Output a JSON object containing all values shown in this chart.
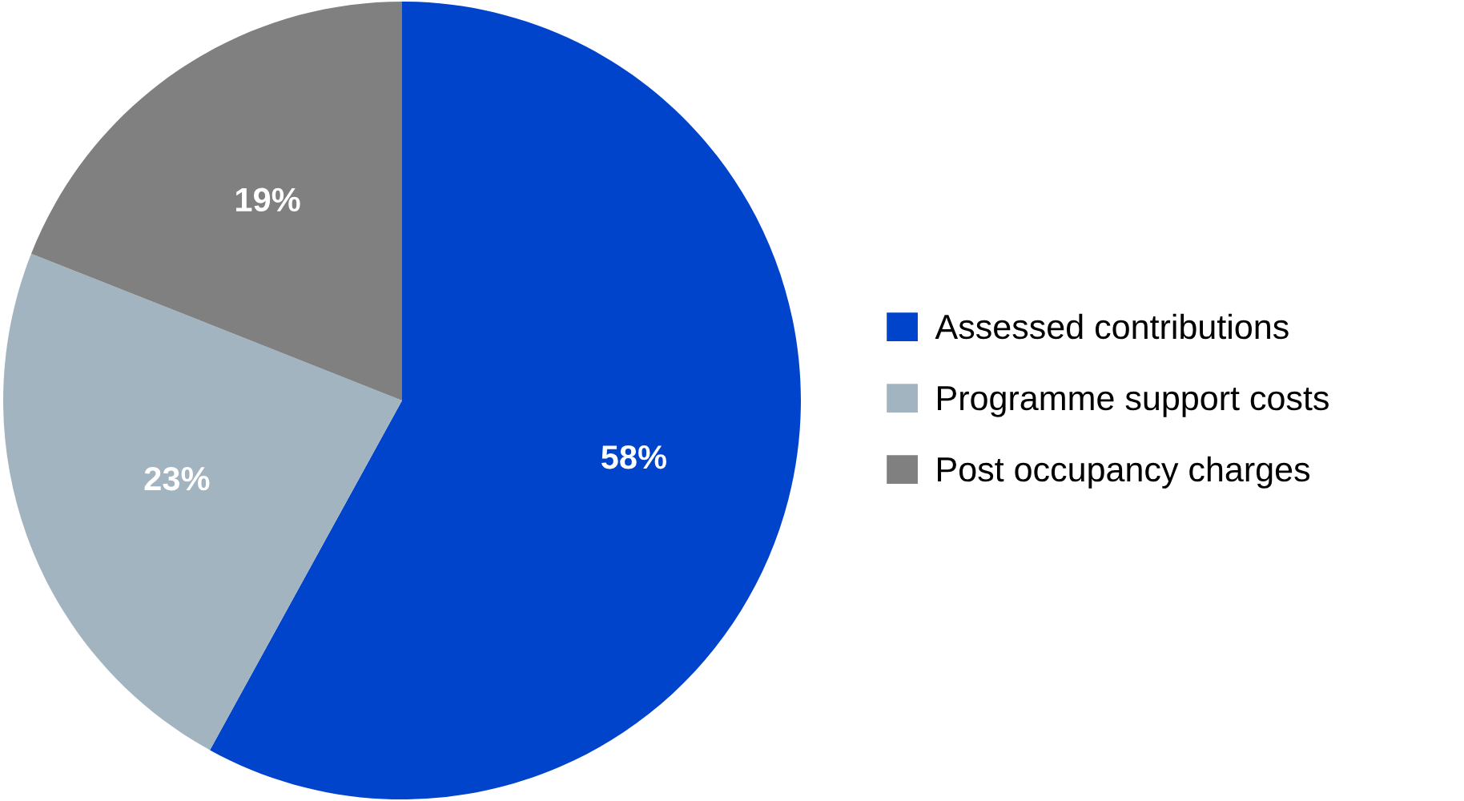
{
  "chart_data": {
    "type": "pie",
    "categories": [
      "Assessed contributions",
      "Programme support costs",
      "Post occupancy charges"
    ],
    "values": [
      58,
      23,
      19
    ],
    "colors": [
      "#0044cc",
      "#a2b4c0",
      "#808080"
    ],
    "value_labels": [
      "58%",
      "23%",
      "19%"
    ],
    "legend": "right"
  }
}
